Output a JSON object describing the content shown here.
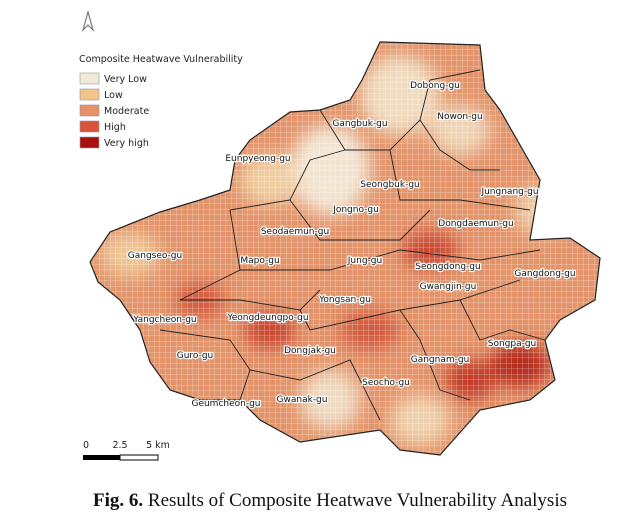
{
  "legend": {
    "title": "Composite Heatwave Vulnerability",
    "items": [
      {
        "label": "Very Low",
        "color": "#f2ead9"
      },
      {
        "label": "Low",
        "color": "#f2c48a"
      },
      {
        "label": "Moderate",
        "color": "#e89068"
      },
      {
        "label": "High",
        "color": "#d9523a"
      },
      {
        "label": "Very high",
        "color": "#a81010"
      }
    ]
  },
  "districts": [
    "Dobong-gu",
    "Nowon-gu",
    "Gangbuk-gu",
    "Eunpyeong-gu",
    "Seongbuk-gu",
    "Jungnang-gu",
    "Jongno-gu",
    "Dongdaemun-gu",
    "Seodaemun-gu",
    "Gangseo-gu",
    "Mapo-gu",
    "Jung-gu",
    "Seongdong-gu",
    "Gangdong-gu",
    "Gwangjin-gu",
    "Yongsan-gu",
    "Yangcheon-gu",
    "Yeongdeungpo-gu",
    "Songpa-gu",
    "Guro-gu",
    "Dongjak-gu",
    "Gangnam-gu",
    "Seocho-gu",
    "Geumcheon-gu",
    "Gwanak-gu"
  ],
  "scale_bar": {
    "labels": [
      "0",
      "2.5",
      "5 km"
    ]
  },
  "caption": {
    "label": "Fig. 6.",
    "text": "Results of Composite Heatwave Vulnerability Analysis"
  }
}
